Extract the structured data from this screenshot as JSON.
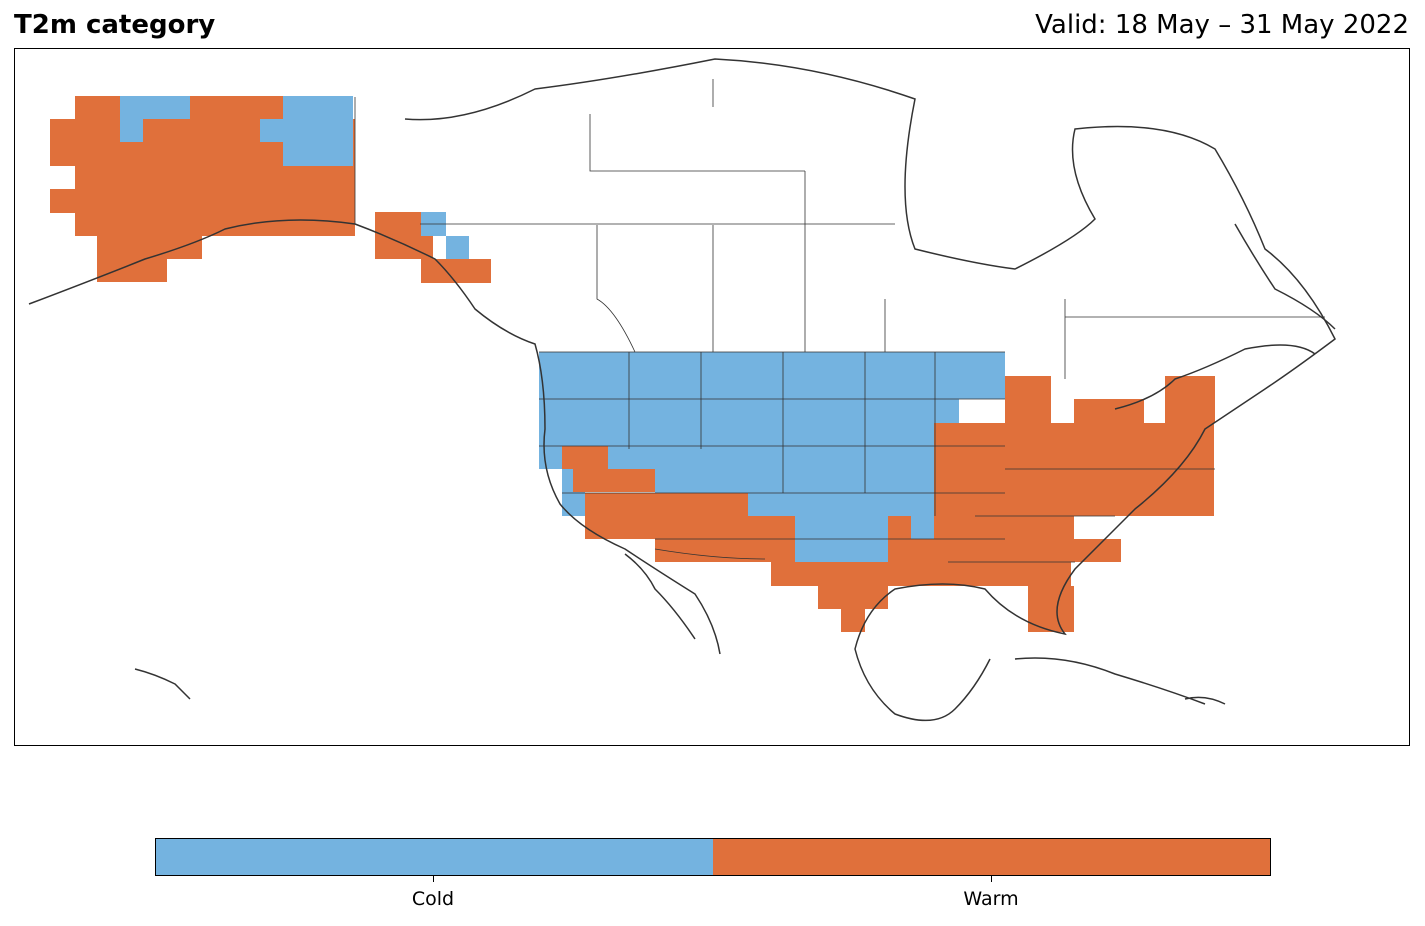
{
  "title": "T2m category",
  "valid": "Valid: 18 May – 31 May 2022",
  "colors": {
    "cold": "#74b3e0",
    "warm": "#e0703b",
    "coastline": "#333333"
  },
  "legend": {
    "categories": [
      {
        "label": "Cold",
        "color": "#74b3e0"
      },
      {
        "label": "Warm",
        "color": "#e0703b"
      }
    ]
  }
}
